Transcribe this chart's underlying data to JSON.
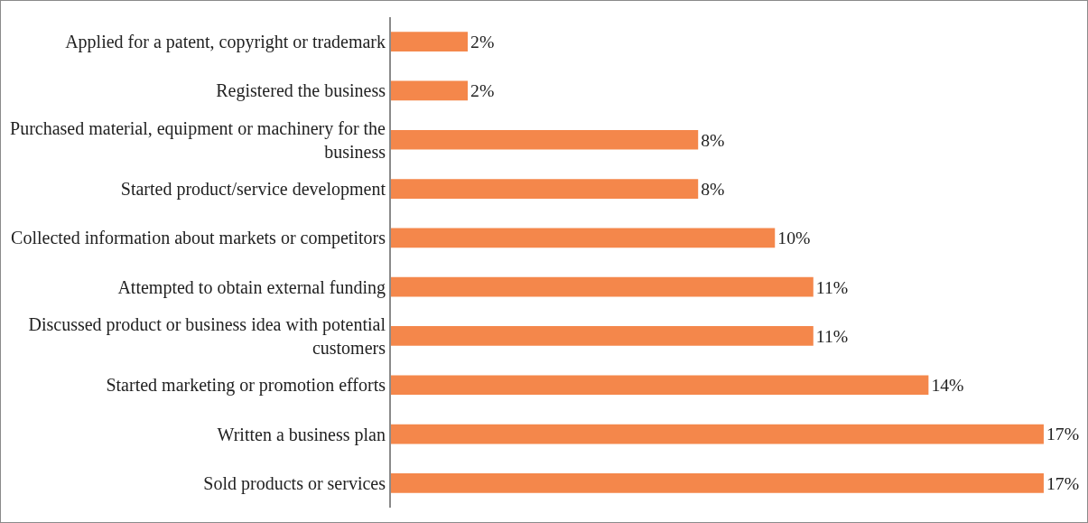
{
  "chart_data": {
    "type": "bar",
    "orientation": "horizontal",
    "categories": [
      "Applied for a patent, copyright or trademark",
      "Registered the business",
      "Purchased material, equipment or machinery for the business",
      "Started product/service development",
      "Collected information about markets or competitors",
      "Attempted to obtain external funding",
      "Discussed product or business idea with potential customers",
      "Started marketing or promotion efforts",
      "Written a business plan",
      "Sold products or services"
    ],
    "values": [
      2,
      2,
      8,
      8,
      10,
      11,
      11,
      14,
      17,
      17
    ],
    "value_labels": [
      "2%",
      "2%",
      "8%",
      "8%",
      "10%",
      "11%",
      "11%",
      "14%",
      "17%",
      "17%"
    ],
    "color": "#f4874b",
    "tick_labels": "y"
  }
}
